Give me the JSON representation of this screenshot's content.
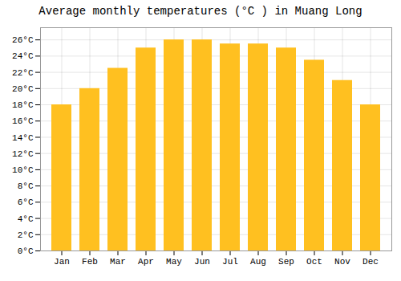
{
  "chart_data": {
    "type": "bar",
    "title": "Average monthly temperatures (°C ) in Muang Long",
    "categories": [
      "Jan",
      "Feb",
      "Mar",
      "Apr",
      "May",
      "Jun",
      "Jul",
      "Aug",
      "Sep",
      "Oct",
      "Nov",
      "Dec"
    ],
    "values": [
      18,
      20,
      22.5,
      25,
      26,
      26,
      25.5,
      25.5,
      25,
      23.5,
      21,
      18
    ],
    "color": "#FFC020",
    "ylim": [
      0,
      27.5
    ],
    "yticks": [
      {
        "value": 0,
        "label": "0°C"
      },
      {
        "value": 2,
        "label": "2°C"
      },
      {
        "value": 4,
        "label": "4°C"
      },
      {
        "value": 6,
        "label": "6°C"
      },
      {
        "value": 8,
        "label": "8°C"
      },
      {
        "value": 10,
        "label": "10°C"
      },
      {
        "value": 12,
        "label": "12°C"
      },
      {
        "value": 14,
        "label": "14°C"
      },
      {
        "value": 16,
        "label": "16°C"
      },
      {
        "value": 18,
        "label": "18°C"
      },
      {
        "value": 20,
        "label": "20°C"
      },
      {
        "value": 22,
        "label": "22°C"
      },
      {
        "value": 24,
        "label": "24°C"
      },
      {
        "value": 26,
        "label": "26°C"
      }
    ],
    "grid": true
  }
}
